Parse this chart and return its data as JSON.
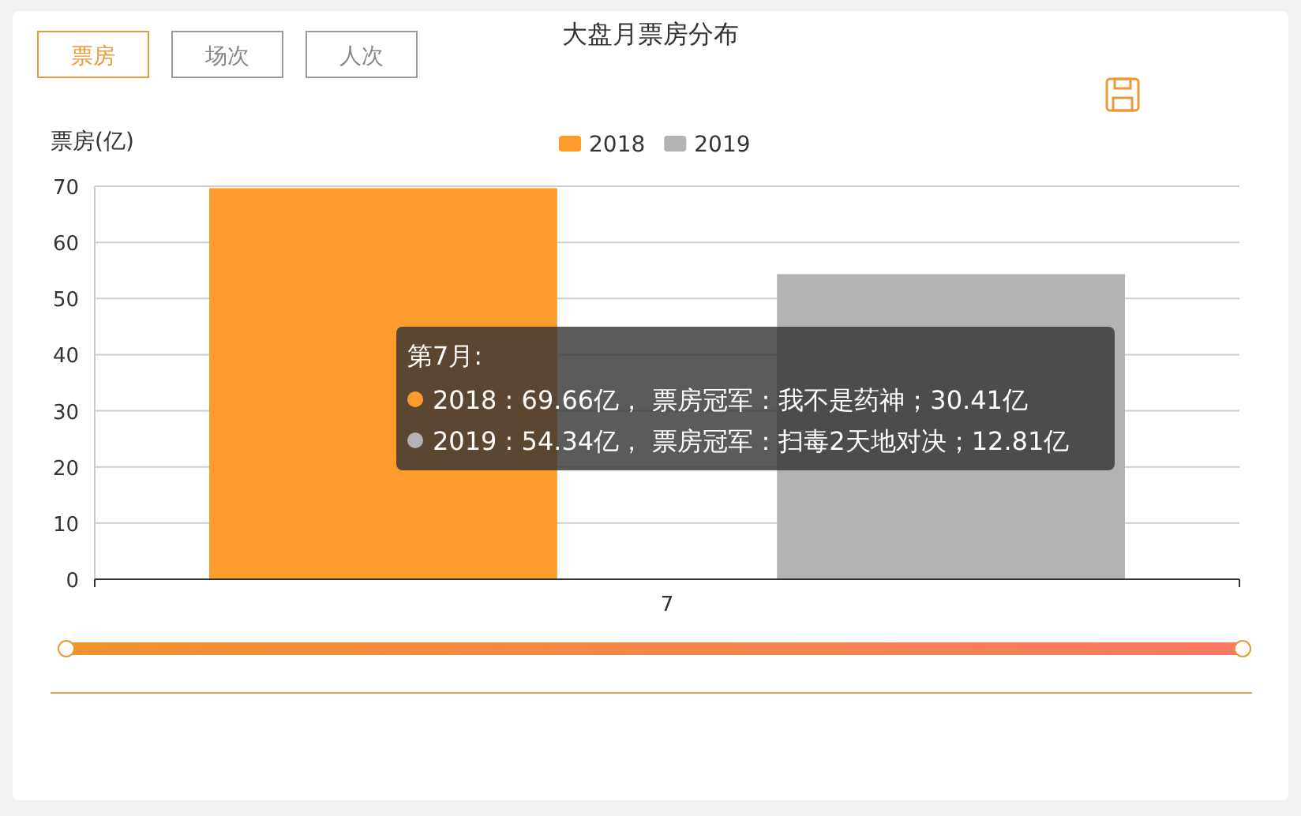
{
  "chart_data": {
    "type": "bar",
    "title": "大盘月票房分布",
    "ylabel": "票房(亿)",
    "categories": [
      "7"
    ],
    "series": [
      {
        "name": "2018",
        "color": "#fd9c2d",
        "values": [
          69.66
        ]
      },
      {
        "name": "2019",
        "color": "#b3b3b3",
        "values": [
          54.34
        ]
      }
    ],
    "ylim": [
      0,
      70
    ],
    "yticks": [
      0,
      10,
      20,
      30,
      40,
      50,
      60,
      70
    ],
    "grid": "y",
    "legend": "top",
    "annotations": [
      "票房",
      "场次",
      "人次",
      "第7月:",
      "2018 : 69.66亿，  票房冠军：我不是药神；30.41亿",
      "2019 : 54.34亿，  票房冠军：扫毒2天地对决；12.81亿"
    ]
  }
}
